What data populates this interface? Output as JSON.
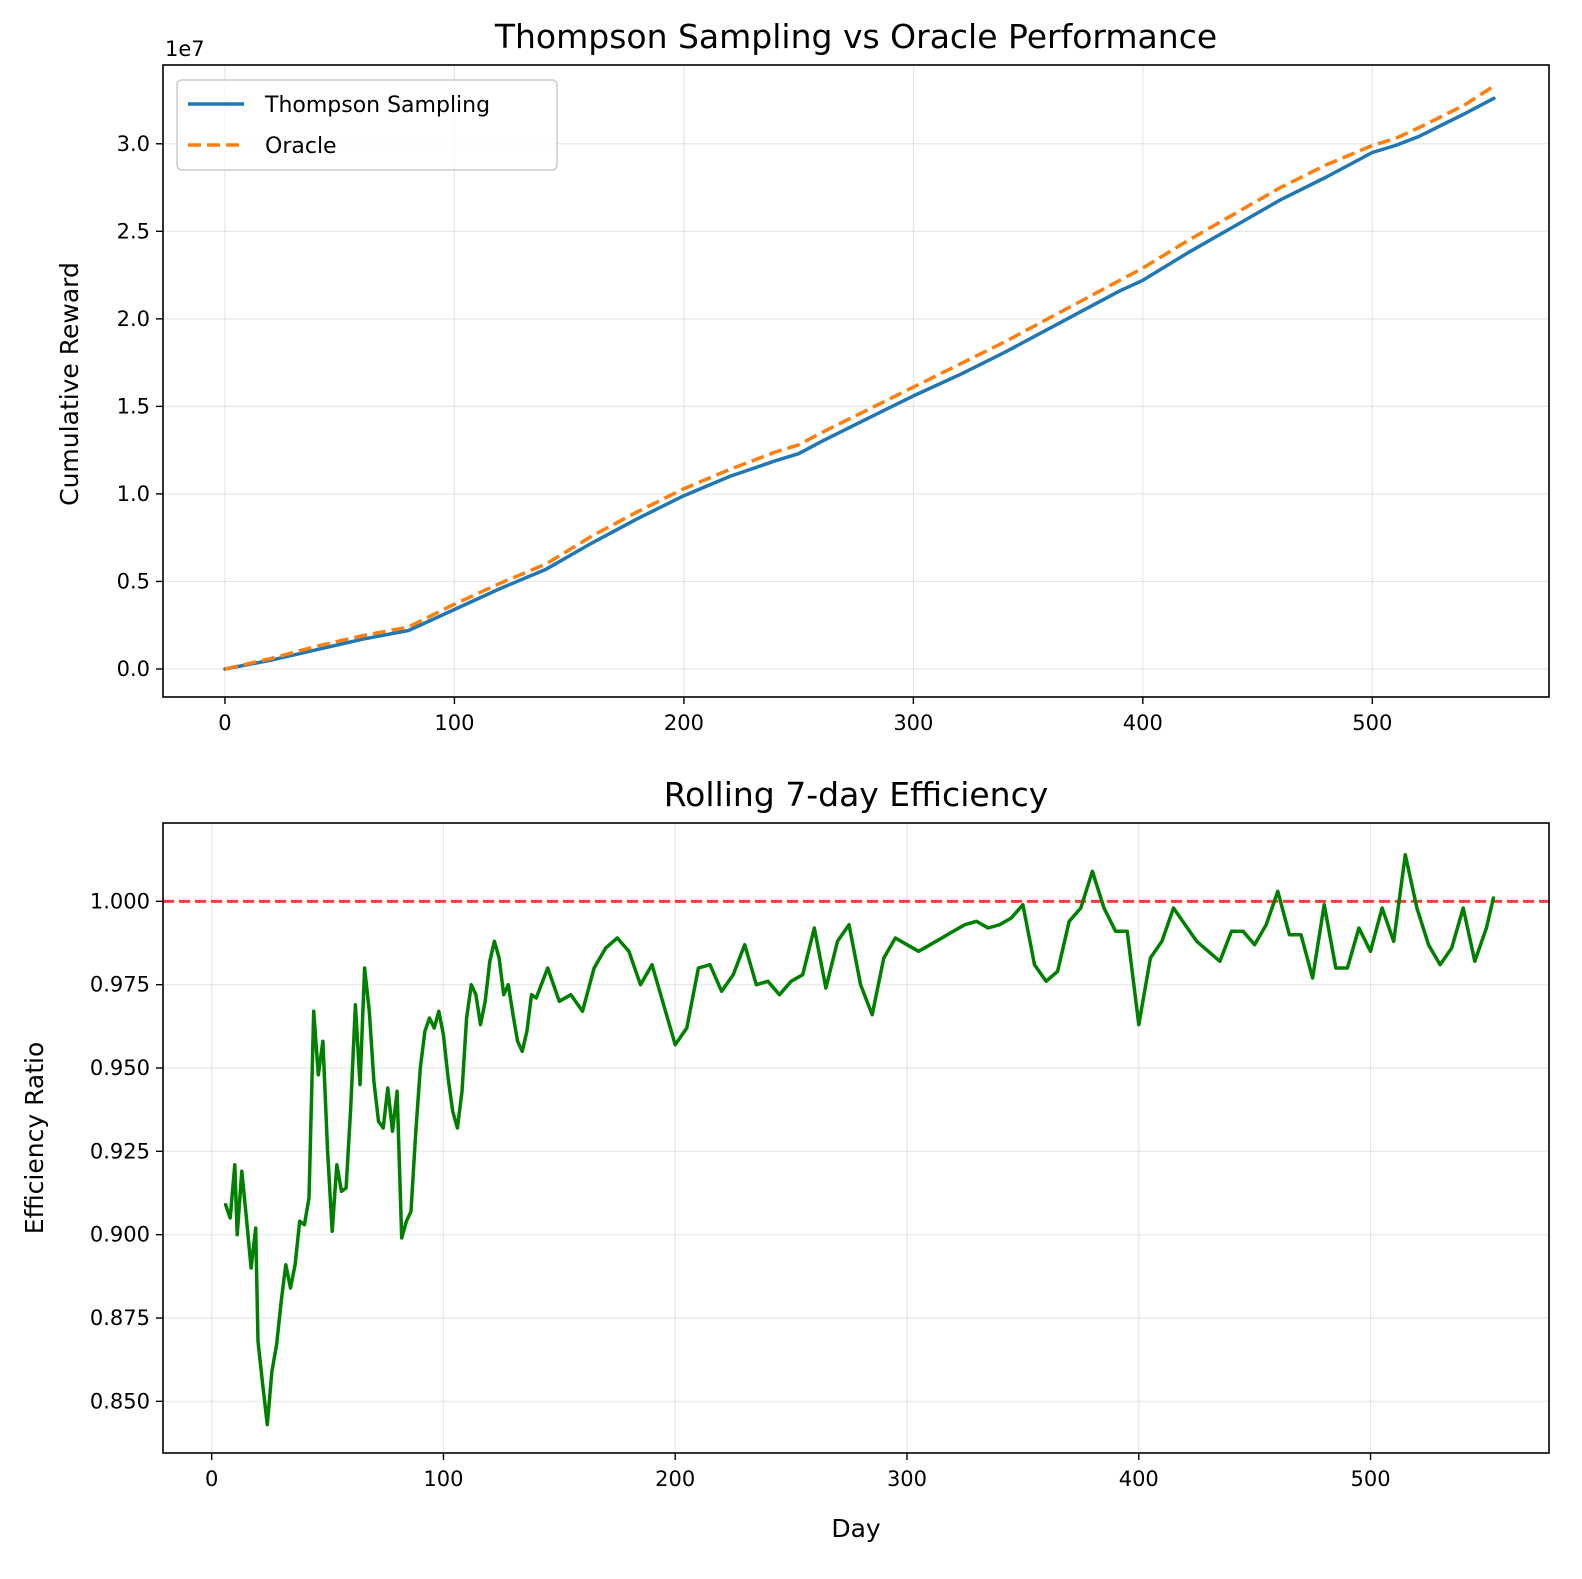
{
  "chart_data": [
    {
      "type": "line",
      "title": "Thompson Sampling vs Oracle Performance",
      "xlabel": "",
      "ylabel": "Cumulative Reward",
      "offset_text": "1e7",
      "xlim": [
        -27,
        577
      ],
      "ylim": [
        -0.16,
        3.45
      ],
      "xticks": [
        0,
        100,
        200,
        300,
        400,
        500
      ],
      "yticks": [
        0.0,
        0.5,
        1.0,
        1.5,
        2.0,
        2.5,
        3.0
      ],
      "ytick_labels": [
        "0.0",
        "0.5",
        "1.0",
        "1.5",
        "2.0",
        "2.5",
        "3.0"
      ],
      "grid": true,
      "legend_position": "upper-left",
      "series": [
        {
          "name": "Thompson Sampling",
          "color": "#1f77b4",
          "dash": "solid",
          "x": [
            0,
            20,
            40,
            60,
            80,
            100,
            120,
            140,
            160,
            180,
            200,
            220,
            240,
            250,
            260,
            280,
            300,
            320,
            340,
            360,
            380,
            390,
            400,
            420,
            440,
            460,
            480,
            500,
            510,
            520,
            540,
            553
          ],
          "y": [
            0.0,
            0.05,
            0.11,
            0.17,
            0.22,
            0.34,
            0.46,
            0.57,
            0.72,
            0.86,
            0.99,
            1.1,
            1.19,
            1.23,
            1.3,
            1.43,
            1.56,
            1.68,
            1.81,
            1.95,
            2.09,
            2.16,
            2.22,
            2.38,
            2.53,
            2.68,
            2.81,
            2.95,
            2.99,
            3.04,
            3.17,
            3.26
          ]
        },
        {
          "name": "Oracle",
          "color": "#ff7f0e",
          "dash": "dashed",
          "x": [
            0,
            20,
            40,
            60,
            80,
            100,
            120,
            140,
            160,
            180,
            200,
            220,
            240,
            250,
            260,
            280,
            300,
            320,
            340,
            360,
            380,
            390,
            400,
            420,
            440,
            460,
            480,
            500,
            510,
            520,
            540,
            553
          ],
          "y": [
            0.0,
            0.06,
            0.13,
            0.19,
            0.24,
            0.37,
            0.49,
            0.6,
            0.76,
            0.9,
            1.03,
            1.14,
            1.24,
            1.28,
            1.35,
            1.48,
            1.61,
            1.74,
            1.87,
            2.01,
            2.15,
            2.22,
            2.29,
            2.45,
            2.6,
            2.75,
            2.88,
            2.99,
            3.03,
            3.09,
            3.22,
            3.33
          ]
        }
      ]
    },
    {
      "type": "line",
      "title": "Rolling 7-day Efficiency",
      "xlabel": "Day",
      "ylabel": "Efficiency Ratio",
      "xlim": [
        -21,
        577
      ],
      "ylim": [
        0.8345,
        1.0235
      ],
      "xticks": [
        0,
        100,
        200,
        300,
        400,
        500
      ],
      "yticks": [
        0.85,
        0.875,
        0.9,
        0.925,
        0.95,
        0.975,
        1.0
      ],
      "ytick_labels": [
        "0.850",
        "0.875",
        "0.900",
        "0.925",
        "0.950",
        "0.975",
        "1.000"
      ],
      "grid": true,
      "reference_line": {
        "y": 1.0,
        "color": "#ff0000",
        "dash": "dashed"
      },
      "series": [
        {
          "color": "#008000",
          "dash": "solid",
          "x": [
            6,
            8,
            10,
            11,
            13,
            15,
            17,
            19,
            20,
            22,
            24,
            26,
            28,
            30,
            32,
            34,
            36,
            38,
            40,
            42,
            44,
            46,
            48,
            50,
            52,
            54,
            56,
            58,
            60,
            62,
            64,
            66,
            68,
            70,
            72,
            74,
            76,
            78,
            80,
            82,
            84,
            86,
            88,
            90,
            92,
            94,
            96,
            98,
            100,
            102,
            104,
            106,
            108,
            110,
            112,
            114,
            116,
            118,
            120,
            122,
            124,
            126,
            128,
            130,
            132,
            134,
            136,
            138,
            140,
            145,
            150,
            155,
            160,
            165,
            170,
            175,
            180,
            185,
            190,
            195,
            200,
            205,
            210,
            215,
            220,
            225,
            230,
            235,
            240,
            245,
            250,
            255,
            260,
            265,
            270,
            275,
            280,
            285,
            290,
            295,
            300,
            305,
            310,
            315,
            320,
            325,
            330,
            335,
            340,
            345,
            350,
            355,
            360,
            365,
            370,
            375,
            380,
            385,
            390,
            395,
            400,
            405,
            410,
            415,
            420,
            425,
            430,
            435,
            440,
            445,
            450,
            455,
            460,
            465,
            470,
            475,
            480,
            485,
            490,
            495,
            500,
            505,
            510,
            515,
            520,
            525,
            530,
            535,
            540,
            545,
            550,
            553
          ],
          "y": [
            0.909,
            0.905,
            0.921,
            0.9,
            0.919,
            0.905,
            0.89,
            0.902,
            0.868,
            0.855,
            0.843,
            0.859,
            0.867,
            0.88,
            0.891,
            0.884,
            0.891,
            0.904,
            0.903,
            0.911,
            0.967,
            0.948,
            0.958,
            0.925,
            0.901,
            0.921,
            0.913,
            0.914,
            0.938,
            0.969,
            0.945,
            0.98,
            0.967,
            0.946,
            0.934,
            0.932,
            0.944,
            0.931,
            0.943,
            0.899,
            0.904,
            0.907,
            0.93,
            0.95,
            0.961,
            0.965,
            0.962,
            0.967,
            0.96,
            0.947,
            0.937,
            0.932,
            0.943,
            0.965,
            0.975,
            0.972,
            0.963,
            0.97,
            0.982,
            0.988,
            0.983,
            0.972,
            0.975,
            0.966,
            0.958,
            0.955,
            0.961,
            0.972,
            0.971,
            0.98,
            0.97,
            0.972,
            0.967,
            0.98,
            0.986,
            0.989,
            0.985,
            0.975,
            0.981,
            0.969,
            0.957,
            0.962,
            0.98,
            0.981,
            0.973,
            0.978,
            0.987,
            0.975,
            0.976,
            0.972,
            0.976,
            0.978,
            0.992,
            0.974,
            0.988,
            0.993,
            0.975,
            0.966,
            0.983,
            0.989,
            0.987,
            0.985,
            0.987,
            0.989,
            0.991,
            0.993,
            0.994,
            0.992,
            0.993,
            0.995,
            0.999,
            0.981,
            0.976,
            0.979,
            0.994,
            0.998,
            1.009,
            0.998,
            0.991,
            0.991,
            0.963,
            0.983,
            0.988,
            0.998,
            0.993,
            0.988,
            0.985,
            0.982,
            0.991,
            0.991,
            0.987,
            0.993,
            1.003,
            0.99,
            0.99,
            0.977,
            0.999,
            0.98,
            0.98,
            0.992,
            0.985,
            0.998,
            0.988,
            1.014,
            0.998,
            0.987,
            0.981,
            0.986,
            0.998,
            0.982,
            0.992,
            1.001
          ]
        }
      ]
    }
  ]
}
